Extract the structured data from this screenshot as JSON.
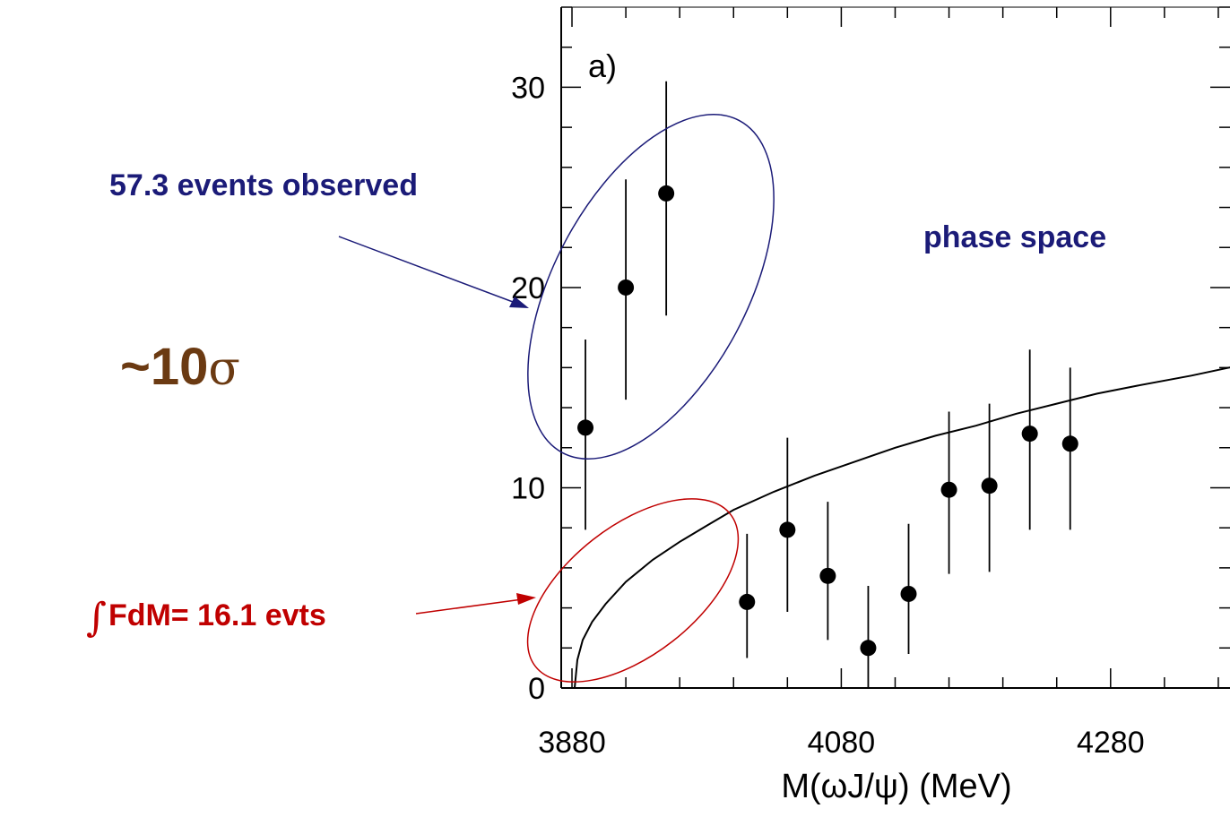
{
  "chart_data": {
    "type": "scatter",
    "panel_label": "a)",
    "xlabel": "M(ωJ/ψ) (MeV)",
    "ylabel": "",
    "xlim": [
      3872,
      4382
    ],
    "ylim": [
      0,
      34
    ],
    "x_ticks": [
      3880,
      4080,
      4280
    ],
    "y_ticks": [
      0,
      10,
      20,
      30
    ],
    "x_minor_step": 40,
    "y_minor_step": 2,
    "points": [
      {
        "x": 3890,
        "y": 13.0,
        "ylo": 7.9,
        "yhi": 17.4
      },
      {
        "x": 3920,
        "y": 20.0,
        "ylo": 14.4,
        "yhi": 25.4
      },
      {
        "x": 3950,
        "y": 24.7,
        "ylo": 18.6,
        "yhi": 30.3
      },
      {
        "x": 4010,
        "y": 4.3,
        "ylo": 1.5,
        "yhi": 7.7
      },
      {
        "x": 4040,
        "y": 7.9,
        "ylo": 3.8,
        "yhi": 12.5
      },
      {
        "x": 4070,
        "y": 5.6,
        "ylo": 2.4,
        "yhi": 9.3
      },
      {
        "x": 4100,
        "y": 2.0,
        "ylo": 0.0,
        "yhi": 5.1
      },
      {
        "x": 4130,
        "y": 4.7,
        "ylo": 1.7,
        "yhi": 8.2
      },
      {
        "x": 4160,
        "y": 9.9,
        "ylo": 5.7,
        "yhi": 13.8
      },
      {
        "x": 4190,
        "y": 10.1,
        "ylo": 5.8,
        "yhi": 14.2
      },
      {
        "x": 4220,
        "y": 12.7,
        "ylo": 7.9,
        "yhi": 16.9
      },
      {
        "x": 4250,
        "y": 12.2,
        "ylo": 7.9,
        "yhi": 16.0
      }
    ],
    "phase_space_curve": {
      "x": [
        3882,
        3884,
        3888,
        3895,
        3905,
        3920,
        3940,
        3960,
        3980,
        4000,
        4030,
        4060,
        4090,
        4120,
        4150,
        4180,
        4210,
        4240,
        4270,
        4300,
        4340,
        4382
      ],
      "y": [
        0.0,
        1.4,
        2.4,
        3.3,
        4.2,
        5.3,
        6.4,
        7.3,
        8.1,
        8.9,
        9.8,
        10.6,
        11.3,
        12.0,
        12.6,
        13.1,
        13.7,
        14.2,
        14.7,
        15.1,
        15.6,
        16.2
      ]
    },
    "annotations": {
      "observed": "57.3 events observed",
      "significance": "~10σ",
      "significance_prefix": "~10",
      "significance_symbol": "σ",
      "integral_sign": "∫",
      "integral": "FdM= 16.1 evts",
      "phase_space": "phase space"
    },
    "colors": {
      "observed": "#1b1b78",
      "significance": "#6b3a12",
      "integral": "#c00000",
      "markers": "#000000"
    }
  }
}
